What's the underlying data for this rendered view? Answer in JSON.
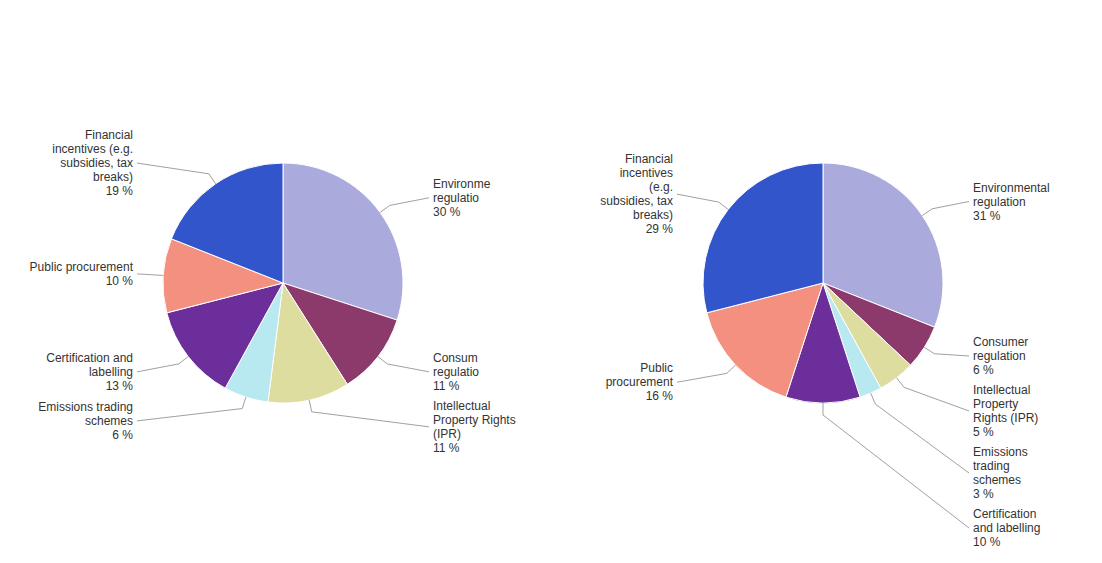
{
  "chart_data": [
    {
      "type": "pie",
      "categories": [
        "Environme\nregulatio",
        "Consum\nregulatio",
        "Intellectual\nProperty Rights\n(IPR)",
        "Emissions trading\nschemes",
        "Certification and\nlabelling",
        "Public procurement",
        "Financial\nincentives (e.g.\nsubsidies, tax\nbreaks)"
      ],
      "values": [
        30,
        11,
        11,
        6,
        13,
        10,
        19
      ],
      "value_labels": [
        "30 %",
        "11 %",
        "11 %",
        "6 %",
        "13 %",
        "10 %",
        "19 %"
      ],
      "colors": [
        "#aaaadd",
        "#8b3a6b",
        "#dddda0",
        "#b8e8f0",
        "#6b2e9b",
        "#f49080",
        "#3355cc"
      ]
    },
    {
      "type": "pie",
      "categories": [
        "Environmental\nregulation",
        "Consumer\nregulation",
        "Intellectual\nProperty\nRights (IPR)",
        "Emissions\ntrading\nschemes",
        "Certification\nand labelling",
        "Public\nprocurement",
        "Financial\nincentives\n(e.g.\nsubsidies, tax\nbreaks)"
      ],
      "values": [
        31,
        6,
        5,
        3,
        10,
        16,
        29
      ],
      "value_labels": [
        "31 %",
        "6 %",
        "5 %",
        "3 %",
        "10 %",
        "16 %",
        "29 %"
      ],
      "colors": [
        "#aaaadd",
        "#8b3a6b",
        "#dddda0",
        "#b8e8f0",
        "#6b2e9b",
        "#f49080",
        "#3355cc"
      ]
    }
  ]
}
